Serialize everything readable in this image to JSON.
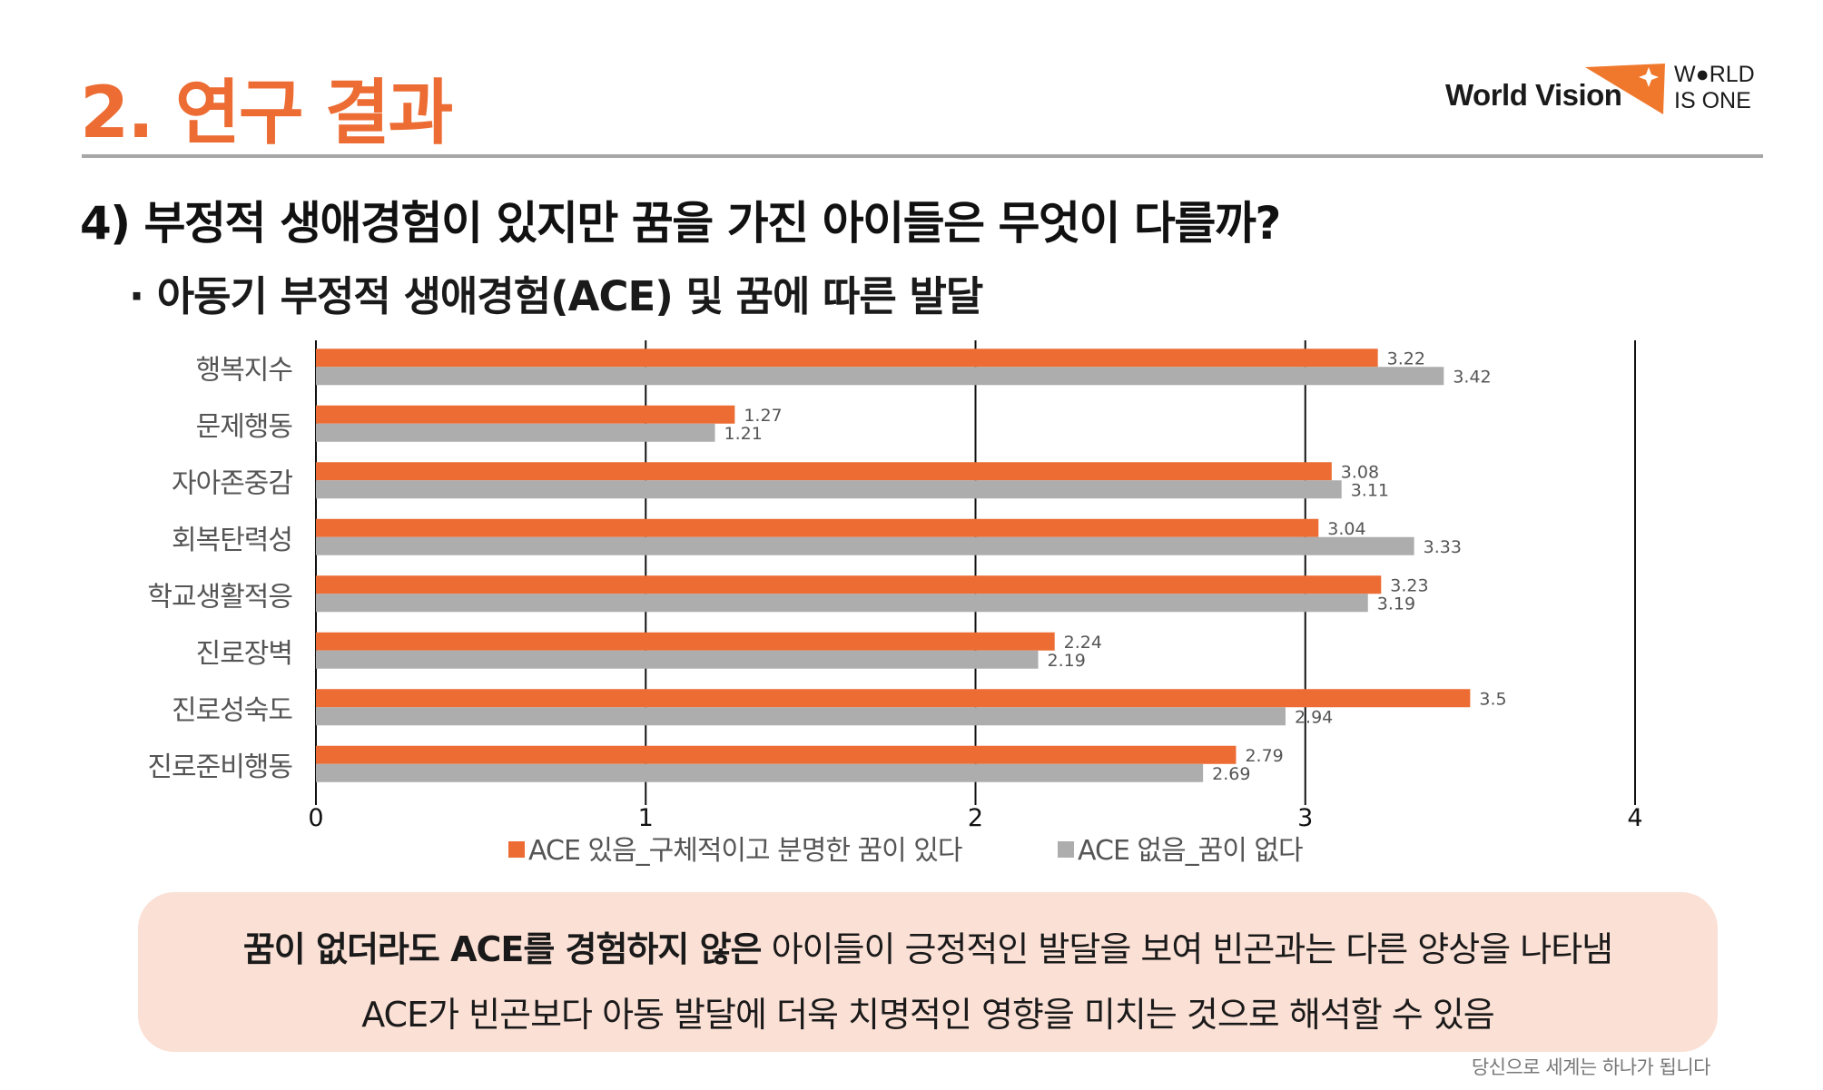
{
  "section_title": "2. 연구 결과",
  "brand": {
    "name": "World Vision",
    "tagline_1": "W●RLD",
    "tagline_2": "IS ONE",
    "accent_color": "#f0782d"
  },
  "question": "4) 부정적 생애경험이 있지만 꿈을 가진 아이들은 무엇이 다를까?",
  "subtitle": "· 아동기 부정적 생애경험(ACE) 및 꿈에 따른 발달",
  "chart_data": {
    "type": "bar",
    "orientation": "horizontal",
    "categories": [
      "행복지수",
      "문제행동",
      "자아존중감",
      "회복탄력성",
      "학교생활적응",
      "진로장벽",
      "진로성숙도",
      "진로준비행동"
    ],
    "series": [
      {
        "name": "ACE 있음_구체적이고 분명한 꿈이 있다",
        "color": "#ec6c33",
        "values": [
          3.22,
          1.27,
          3.08,
          3.04,
          3.23,
          2.24,
          3.5,
          2.79
        ]
      },
      {
        "name": "ACE 없음_꿈이 없다",
        "color": "#adadad",
        "values": [
          3.42,
          1.21,
          3.11,
          3.33,
          3.19,
          2.19,
          2.94,
          2.69
        ]
      }
    ],
    "xlim": [
      0,
      4
    ],
    "x_ticks": [
      "0",
      "1",
      "2",
      "3",
      "4"
    ],
    "grid": "vertical",
    "legend": "bottom"
  },
  "callout": {
    "line1_bold": "꿈이 없더라도 ACE를 경험하지 않은",
    "line1_rest": " 아이들이 긍정적인 발달을 보여 빈곤과는 다른 양상을 나타냄",
    "line2": "ACE가 빈곤보다 아동 발달에 더욱 치명적인 영향을 미치는 것으로 해석할 수 있음"
  },
  "footer": "당신으로 세계는 하나가 됩니다"
}
